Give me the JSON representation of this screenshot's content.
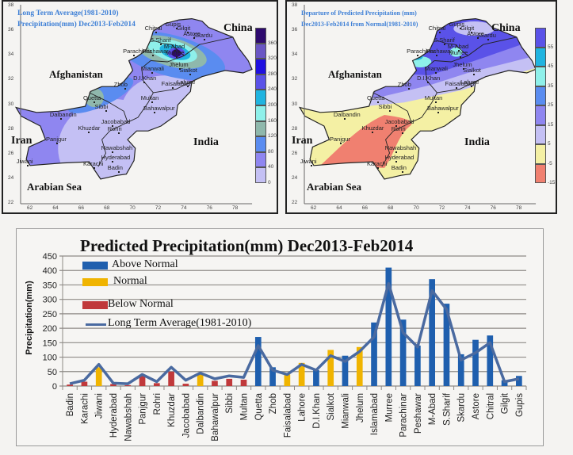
{
  "maps": {
    "left": {
      "title_line1": "Long Term Average(1981-2010)",
      "title_line2": "Precipitation(mm) Dec2013-Feb2014",
      "legend_ticks": [
        "360",
        "320",
        "280",
        "240",
        "200",
        "160",
        "120",
        "80",
        "40",
        "0"
      ],
      "legend_colors": [
        "#2e0a6e",
        "#6a56c4",
        "#1f10e0",
        "#5a52e8",
        "#20b4e0",
        "#8ef0ea",
        "#8fb8ac",
        "#5a8cf0",
        "#8f86f0",
        "#c4c0f4"
      ]
    },
    "right": {
      "title_line1": "Departure of Predicted Precipitation (mm)",
      "title_line2": "Dec2013-Feb2014 from Normal(1981-2010)",
      "legend_ticks": [
        "55",
        "45",
        "35",
        "25",
        "15",
        "5",
        "-5",
        "-15"
      ],
      "legend_colors": [
        "#5a52e8",
        "#20b4e0",
        "#8ef0ea",
        "#5a8cf0",
        "#8f86f0",
        "#c4c0f4",
        "#f4f0a4",
        "#f08070"
      ]
    },
    "countries": {
      "china": "China",
      "afghanistan": "Afghanistan",
      "iran": "Iran",
      "india": "India",
      "arabian_sea": "Arabian Sea"
    },
    "lat_ticks": [
      "38",
      "36",
      "34",
      "32",
      "30",
      "28",
      "26",
      "24",
      "22"
    ],
    "lon_ticks": [
      "62",
      "64",
      "66",
      "68",
      "70",
      "72",
      "74",
      "76",
      "78"
    ],
    "cities": [
      {
        "name": "Chitral",
        "lon": 71.8,
        "lat": 35.9
      },
      {
        "name": "Gupis",
        "lon": 73.4,
        "lat": 36.2
      },
      {
        "name": "Gilgit",
        "lon": 74.3,
        "lat": 35.9
      },
      {
        "name": "Astore",
        "lon": 74.8,
        "lat": 35.4
      },
      {
        "name": "Skardu",
        "lon": 75.6,
        "lat": 35.3
      },
      {
        "name": "S.Sharif",
        "lon": 72.2,
        "lat": 34.9
      },
      {
        "name": "M-Abad",
        "lon": 73.3,
        "lat": 34.4
      },
      {
        "name": "Parachinar",
        "lon": 70.1,
        "lat": 34.0
      },
      {
        "name": "Peshawar",
        "lon": 71.6,
        "lat": 34.0
      },
      {
        "name": "Murree",
        "lon": 73.4,
        "lat": 33.9
      },
      {
        "name": "Jhelum",
        "lon": 73.7,
        "lat": 32.9
      },
      {
        "name": "Sialkot",
        "lon": 74.5,
        "lat": 32.5
      },
      {
        "name": "Mianwali",
        "lon": 71.5,
        "lat": 32.6
      },
      {
        "name": "D.I.Khan",
        "lon": 70.9,
        "lat": 31.8
      },
      {
        "name": "Zhob",
        "lon": 69.4,
        "lat": 31.3
      },
      {
        "name": "Faisalabad",
        "lon": 73.1,
        "lat": 31.4
      },
      {
        "name": "Lahore",
        "lon": 74.3,
        "lat": 31.5
      },
      {
        "name": "Quetta",
        "lon": 67.0,
        "lat": 30.2
      },
      {
        "name": "Multan",
        "lon": 71.5,
        "lat": 30.2
      },
      {
        "name": "Sibbi",
        "lon": 67.9,
        "lat": 29.5
      },
      {
        "name": "Bahawalpur",
        "lon": 71.7,
        "lat": 29.4
      },
      {
        "name": "Dalbandin",
        "lon": 64.4,
        "lat": 28.9
      },
      {
        "name": "Jacobabad",
        "lon": 68.4,
        "lat": 28.3
      },
      {
        "name": "Khuzdar",
        "lon": 66.6,
        "lat": 27.8
      },
      {
        "name": "Rohri",
        "lon": 68.9,
        "lat": 27.7
      },
      {
        "name": "Panjgur",
        "lon": 64.1,
        "lat": 26.9
      },
      {
        "name": "Nawabshah",
        "lon": 68.4,
        "lat": 26.2
      },
      {
        "name": "Hyderabad",
        "lon": 68.4,
        "lat": 25.4
      },
      {
        "name": "Jiwani",
        "lon": 61.8,
        "lat": 25.1
      },
      {
        "name": "Karachi",
        "lon": 67.0,
        "lat": 24.9
      },
      {
        "name": "Badin",
        "lon": 68.9,
        "lat": 24.6
      }
    ]
  },
  "chart_data": {
    "type": "bar",
    "title": "Predicted Precipitation(mm) Dec2013-Feb2014",
    "xlabel": "",
    "ylabel": "Precipitation(mm)",
    "ylim": [
      0,
      450
    ],
    "yticks": [
      0,
      50,
      100,
      150,
      200,
      250,
      300,
      350,
      400,
      450
    ],
    "grid": true,
    "legend_position": "upper-left",
    "categories": [
      "Badin",
      "Karachi",
      "Jiwani",
      "Hyderabad",
      "Nawabshah",
      "Panjgur",
      "Rohri",
      "Khuzdar",
      "Jacobabad",
      "Dalbandin",
      "Bahawalpur",
      "Sibbi",
      "Multan",
      "Quetta",
      "Zhob",
      "Faisalabad",
      "Lahore",
      "D.I.Khan",
      "Sialkot",
      "Mianwali",
      "Jhelum",
      "Islamabad",
      "Murree",
      "Parachinar",
      "Peshawar",
      "M-Abad",
      "S.Sharif",
      "Skardu",
      "Astore",
      "Chitral",
      "Gilgit",
      "Gupis"
    ],
    "series": [
      {
        "name": "Predicted Precipitation",
        "kind": "bar",
        "values": [
          5,
          15,
          65,
          7,
          3,
          35,
          10,
          50,
          8,
          40,
          18,
          25,
          22,
          170,
          65,
          40,
          80,
          55,
          125,
          105,
          135,
          220,
          410,
          230,
          140,
          370,
          285,
          110,
          160,
          175,
          20,
          35
        ],
        "category": [
          "below",
          "below",
          "normal",
          "below",
          "below",
          "below",
          "below",
          "below",
          "below",
          "normal",
          "below",
          "below",
          "below",
          "above",
          "above",
          "normal",
          "normal",
          "above",
          "normal",
          "above",
          "normal",
          "above",
          "above",
          "above",
          "above",
          "above",
          "above",
          "above",
          "above",
          "above",
          "above",
          "above"
        ]
      },
      {
        "name": "Long Term Average(1981-2010)",
        "kind": "line",
        "values": [
          8,
          20,
          75,
          10,
          8,
          40,
          15,
          65,
          20,
          45,
          25,
          35,
          30,
          140,
          55,
          40,
          75,
          55,
          105,
          85,
          120,
          170,
          355,
          185,
          135,
          330,
          265,
          90,
          115,
          150,
          15,
          25
        ]
      }
    ],
    "legend": [
      {
        "label": "Above Normal",
        "color": "#1f5fae",
        "kind": "bar"
      },
      {
        "label": "Normal",
        "color": "#f0b400",
        "kind": "bar"
      },
      {
        "label": "Below Normal",
        "color": "#c0393b",
        "kind": "bar"
      },
      {
        "label": "Long Term Average(1981-2010)",
        "color": "#4a6aa0",
        "kind": "line"
      }
    ],
    "colors": {
      "above": "#1f5fae",
      "normal": "#f0b400",
      "below": "#c0393b",
      "line": "#4a6aa0"
    }
  }
}
